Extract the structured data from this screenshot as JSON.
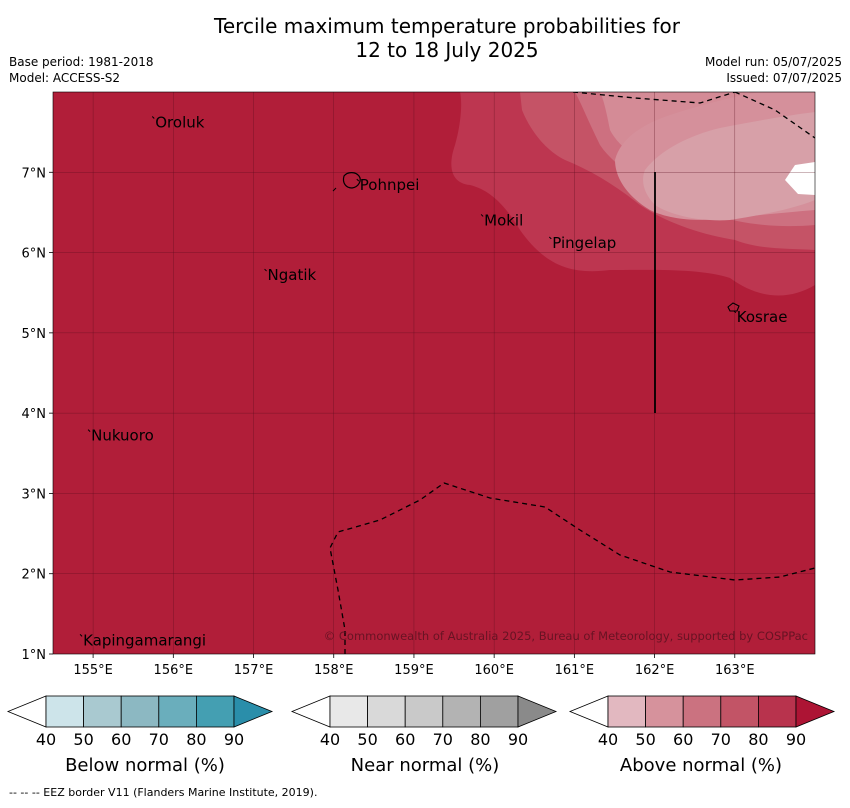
{
  "title_line1": "Tercile maximum temperature probabilities for",
  "title_line2": "12 to 18 July 2025",
  "meta": {
    "base_period": "Base period: 1981-2018",
    "model": "Model: ACCESS-S2",
    "model_run": "Model run: 05/07/2025",
    "issued": "Issued: 07/07/2025"
  },
  "map": {
    "lon_range": [
      154.5,
      164.0
    ],
    "lat_range": [
      1.0,
      8.0
    ],
    "lon_ticks": [
      "155°E",
      "156°E",
      "157°E",
      "158°E",
      "159°E",
      "160°E",
      "161°E",
      "162°E",
      "163°E"
    ],
    "lat_ticks": [
      "1°N",
      "2°N",
      "3°N",
      "4°N",
      "5°N",
      "6°N",
      "7°N"
    ],
    "places": [
      {
        "name": "Oroluk",
        "lon": 155.75,
        "lat": 7.62
      },
      {
        "name": "Pohnpei",
        "lon": 158.3,
        "lat": 6.84
      },
      {
        "name": "Mokil",
        "lon": 159.85,
        "lat": 6.4
      },
      {
        "name": "Pingelap",
        "lon": 160.7,
        "lat": 6.12
      },
      {
        "name": "Ngatik",
        "lon": 157.15,
        "lat": 5.72
      },
      {
        "name": "Kosrae",
        "lon": 163.0,
        "lat": 5.2
      },
      {
        "name": "Nukuoro",
        "lon": 154.95,
        "lat": 3.72
      },
      {
        "name": "Kapingamarangi",
        "lon": 154.85,
        "lat": 1.17
      }
    ],
    "copyright": "© Commonwealth of Australia 2025, Bureau of Meteorology, supported by COSPPac",
    "base_color": "#b11e39"
  },
  "legends": [
    {
      "label": "Below normal (%)",
      "colors": [
        "#cde4ea",
        "#a9c9d0",
        "#8cb8c2",
        "#6aaebc",
        "#449fb2",
        "#2a8eaa"
      ],
      "ticks": [
        "40",
        "50",
        "60",
        "70",
        "80",
        "90"
      ]
    },
    {
      "label": "Near normal (%)",
      "colors": [
        "#e8e8e8",
        "#d9d9d9",
        "#c9c9c9",
        "#b3b3b3",
        "#a0a0a0",
        "#8a8a8a"
      ],
      "ticks": [
        "40",
        "50",
        "60",
        "70",
        "80",
        "90"
      ]
    },
    {
      "label": "Above normal (%)",
      "colors": [
        "#e2b8c0",
        "#d6929c",
        "#cb7280",
        "#c25466",
        "#b8334d",
        "#ad1434"
      ],
      "ticks": [
        "40",
        "50",
        "60",
        "70",
        "80",
        "90"
      ]
    }
  ],
  "footer": "--  --  -- EEZ border V11 (Flanders Marine Institute, 2019)."
}
